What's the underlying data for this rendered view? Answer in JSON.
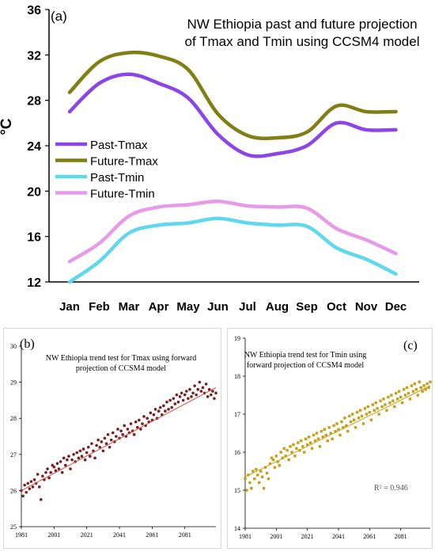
{
  "chart_data": [
    {
      "panel_label": "(a)",
      "type": "line",
      "title_lines": [
        "NW Ethiopia past and future projection",
        "of Tmax and Tmin using CCSM4 model"
      ],
      "ylabel": "°C",
      "categories": [
        "Jan",
        "Feb",
        "Mar",
        "Apr",
        "May",
        "Jun",
        "Jul",
        "Aug",
        "Sep",
        "Oct",
        "Nov",
        "Dec"
      ],
      "ylim": [
        12,
        36
      ],
      "yticks": [
        12,
        16,
        20,
        24,
        28,
        32,
        36
      ],
      "legend_position": "center-left",
      "series": [
        {
          "name": "Past-Tmax",
          "color": "#8b45e8",
          "values": [
            27.0,
            29.5,
            30.3,
            29.5,
            28.2,
            25.0,
            23.2,
            23.3,
            24.0,
            26.0,
            25.4,
            25.4
          ]
        },
        {
          "name": "Future-Tmax",
          "color": "#807f14",
          "values": [
            28.7,
            31.4,
            32.2,
            31.9,
            30.7,
            26.8,
            24.9,
            24.7,
            25.2,
            27.5,
            27.0,
            27.0
          ]
        },
        {
          "name": "Past-Tmin",
          "color": "#5fd8ec",
          "values": [
            12.0,
            13.8,
            16.3,
            17.0,
            17.2,
            17.6,
            17.2,
            17.0,
            16.9,
            15.0,
            14.0,
            12.7
          ]
        },
        {
          "name": "Future-Tmin",
          "color": "#e79ae8",
          "values": [
            13.8,
            15.4,
            17.8,
            18.6,
            18.8,
            19.1,
            18.7,
            18.6,
            18.5,
            16.7,
            15.7,
            14.5
          ]
        }
      ]
    },
    {
      "panel_label": "(b)",
      "type": "scatter",
      "title_lines": [
        "NW Ethiopia trend test for Tmax using forward",
        "projection of CCSM4 model"
      ],
      "xticks": [
        1981,
        2001,
        2021,
        2041,
        2061,
        2081
      ],
      "xlim": [
        1981,
        2100
      ],
      "yticks": [
        25,
        26,
        27,
        28,
        29,
        30
      ],
      "ylim": [
        25,
        30
      ],
      "marker_color": "#7a1e1e",
      "trend_color": "#d94a4a",
      "trend": {
        "start": [
          1981,
          26.0
        ],
        "end": [
          2100,
          28.85
        ]
      },
      "x": [
        1981,
        1982,
        1983,
        1984,
        1985,
        1986,
        1987,
        1988,
        1989,
        1990,
        1991,
        1992,
        1993,
        1994,
        1995,
        1996,
        1997,
        1998,
        1999,
        2000,
        2001,
        2002,
        2003,
        2004,
        2005,
        2006,
        2007,
        2008,
        2009,
        2010,
        2011,
        2012,
        2013,
        2014,
        2015,
        2016,
        2017,
        2018,
        2019,
        2020,
        2021,
        2022,
        2023,
        2024,
        2025,
        2026,
        2027,
        2028,
        2029,
        2030,
        2031,
        2032,
        2033,
        2034,
        2035,
        2036,
        2037,
        2038,
        2039,
        2040,
        2041,
        2042,
        2043,
        2044,
        2045,
        2046,
        2047,
        2048,
        2049,
        2050,
        2051,
        2052,
        2053,
        2054,
        2055,
        2056,
        2057,
        2058,
        2059,
        2060,
        2061,
        2062,
        2063,
        2064,
        2065,
        2066,
        2067,
        2068,
        2069,
        2070,
        2071,
        2072,
        2073,
        2074,
        2075,
        2076,
        2077,
        2078,
        2079,
        2080,
        2081,
        2082,
        2083,
        2084,
        2085,
        2086,
        2087,
        2088,
        2089,
        2090,
        2091,
        2092,
        2093,
        2094,
        2095,
        2096,
        2097,
        2098,
        2099,
        2100
      ],
      "values": [
        26.0,
        25.85,
        26.15,
        25.95,
        26.2,
        26.05,
        26.25,
        26.1,
        26.3,
        26.2,
        26.45,
        26.1,
        25.75,
        26.4,
        26.3,
        26.5,
        26.6,
        26.35,
        26.5,
        26.7,
        26.65,
        26.55,
        26.75,
        26.6,
        26.8,
        26.5,
        26.9,
        26.7,
        26.85,
        26.95,
        26.6,
        26.85,
        27.0,
        26.8,
        27.05,
        26.9,
        27.1,
        26.95,
        27.15,
        26.85,
        27.05,
        27.2,
        26.95,
        27.3,
        27.1,
        26.9,
        27.25,
        27.4,
        27.2,
        27.35,
        27.1,
        27.45,
        27.3,
        27.55,
        27.2,
        27.4,
        27.6,
        27.35,
        27.5,
        27.7,
        27.45,
        27.65,
        27.55,
        27.8,
        27.5,
        27.7,
        27.6,
        27.85,
        27.65,
        27.55,
        27.9,
        27.75,
        27.95,
        27.7,
        27.85,
        28.05,
        27.8,
        28.0,
        27.9,
        28.15,
        27.95,
        28.1,
        28.25,
        28.0,
        28.2,
        28.3,
        28.1,
        28.35,
        28.2,
        28.45,
        28.25,
        28.5,
        28.3,
        28.55,
        28.4,
        28.65,
        28.45,
        28.6,
        28.7,
        28.5,
        28.65,
        28.75,
        28.55,
        28.8,
        28.6,
        28.7,
        28.9,
        28.65,
        28.8,
        29.0,
        28.75,
        28.85,
        28.7,
        28.95,
        28.6,
        28.8,
        28.65,
        28.75,
        28.55,
        28.7
      ]
    },
    {
      "panel_label": "(c)",
      "type": "scatter",
      "title_lines": [
        "NW Ethiopia trend test for Tmin using",
        "forward projection of CCSM4 model"
      ],
      "annotation": "R² = 0.946",
      "xticks": [
        1981,
        2001,
        2021,
        2041,
        2061,
        2081
      ],
      "xlim": [
        1981,
        2100
      ],
      "yticks": [
        14,
        15,
        16,
        17,
        18,
        19
      ],
      "ylim": [
        14,
        19
      ],
      "marker_color": "#c4a012",
      "trend_color": "#c4a012",
      "trend": {
        "start": [
          1981,
          15.35
        ],
        "end": [
          2100,
          17.75
        ]
      },
      "x": [
        1981,
        1982,
        1983,
        1984,
        1985,
        1986,
        1987,
        1988,
        1989,
        1990,
        1991,
        1992,
        1993,
        1994,
        1995,
        1996,
        1997,
        1998,
        1999,
        2000,
        2001,
        2002,
        2003,
        2004,
        2005,
        2006,
        2007,
        2008,
        2009,
        2010,
        2011,
        2012,
        2013,
        2014,
        2015,
        2016,
        2017,
        2018,
        2019,
        2020,
        2021,
        2022,
        2023,
        2024,
        2025,
        2026,
        2027,
        2028,
        2029,
        2030,
        2031,
        2032,
        2033,
        2034,
        2035,
        2036,
        2037,
        2038,
        2039,
        2040,
        2041,
        2042,
        2043,
        2044,
        2045,
        2046,
        2047,
        2048,
        2049,
        2050,
        2051,
        2052,
        2053,
        2054,
        2055,
        2056,
        2057,
        2058,
        2059,
        2060,
        2061,
        2062,
        2063,
        2064,
        2065,
        2066,
        2067,
        2068,
        2069,
        2070,
        2071,
        2072,
        2073,
        2074,
        2075,
        2076,
        2077,
        2078,
        2079,
        2080,
        2081,
        2082,
        2083,
        2084,
        2085,
        2086,
        2087,
        2088,
        2089,
        2090,
        2091,
        2092,
        2093,
        2094,
        2095,
        2096,
        2097,
        2098,
        2099,
        2100
      ],
      "values": [
        15.3,
        15.0,
        15.4,
        15.2,
        15.05,
        15.5,
        15.3,
        15.55,
        15.4,
        15.2,
        15.5,
        15.35,
        15.05,
        15.6,
        15.45,
        15.3,
        15.7,
        15.85,
        15.8,
        15.6,
        15.9,
        15.75,
        15.65,
        16.0,
        15.85,
        16.1,
        15.9,
        16.05,
        15.8,
        16.15,
        16.0,
        16.2,
        15.9,
        16.1,
        16.25,
        16.05,
        16.3,
        16.15,
        16.0,
        16.35,
        16.2,
        16.4,
        16.25,
        16.1,
        16.45,
        16.3,
        16.5,
        16.35,
        16.15,
        16.55,
        16.4,
        16.6,
        16.45,
        16.3,
        16.65,
        16.5,
        16.35,
        16.7,
        16.55,
        16.75,
        16.6,
        16.45,
        16.8,
        16.65,
        16.9,
        16.7,
        16.55,
        16.95,
        16.8,
        17.0,
        16.85,
        16.65,
        17.05,
        16.9,
        17.1,
        16.95,
        16.75,
        17.15,
        17.0,
        17.2,
        17.05,
        16.85,
        17.25,
        17.1,
        17.3,
        17.15,
        17.0,
        17.35,
        17.2,
        17.4,
        17.25,
        17.1,
        17.45,
        17.3,
        17.5,
        17.35,
        17.2,
        17.55,
        17.4,
        17.6,
        17.45,
        17.3,
        17.65,
        17.5,
        17.7,
        17.55,
        17.4,
        17.75,
        17.6,
        17.8,
        17.65,
        17.5,
        17.85,
        17.7,
        17.6,
        17.75,
        17.65,
        17.8,
        17.7,
        17.85
      ]
    }
  ]
}
